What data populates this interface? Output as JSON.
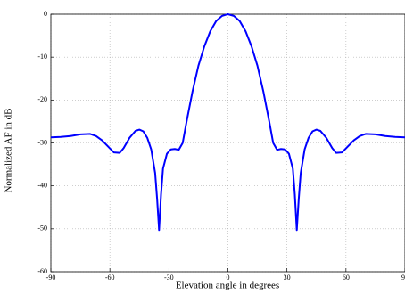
{
  "chart_data": {
    "type": "line",
    "xlabel": "Elevation angle in degrees",
    "ylabel": "Normalized AF in dB",
    "x": [
      -90,
      -85,
      -80,
      -75,
      -70,
      -67,
      -64,
      -61,
      -58,
      -55,
      -53,
      -50,
      -47,
      -45,
      -43,
      -41,
      -39,
      -37,
      -36,
      -35,
      -34,
      -33,
      -31,
      -29,
      -27,
      -25,
      -23,
      -21,
      -18,
      -15,
      -12,
      -9,
      -6,
      -3,
      0,
      3,
      6,
      9,
      12,
      15,
      18,
      21,
      23,
      25,
      27,
      29,
      31,
      33,
      34,
      35,
      36,
      37,
      39,
      41,
      43,
      45,
      47,
      50,
      53,
      55,
      58,
      61,
      64,
      67,
      70,
      75,
      80,
      85,
      90
    ],
    "series": [
      {
        "color": "#0000ff",
        "values": [
          -28.7,
          -28.6,
          -28.4,
          -28,
          -27.9,
          -28.4,
          -29.4,
          -30.8,
          -32.2,
          -32.3,
          -31.2,
          -28.8,
          -27.2,
          -26.9,
          -27.3,
          -28.8,
          -31.5,
          -37,
          -43,
          -50.3,
          -42,
          -36,
          -32.5,
          -31.5,
          -31.4,
          -31.6,
          -30,
          -25,
          -18,
          -12,
          -7.5,
          -4,
          -1.6,
          -0.4,
          0,
          -0.4,
          -1.6,
          -4,
          -7.5,
          -12,
          -18,
          -25,
          -30,
          -31.6,
          -31.4,
          -31.5,
          -32.5,
          -36,
          -42,
          -50.3,
          -43,
          -37,
          -31.5,
          -28.8,
          -27.3,
          -26.9,
          -27.2,
          -28.8,
          -31.2,
          -32.3,
          -32.2,
          -30.8,
          -29.4,
          -28.4,
          -27.9,
          -28,
          -28.4,
          -28.6,
          -28.7
        ]
      }
    ],
    "xlim": [
      -90,
      90
    ],
    "xticks": [
      -90,
      -60,
      -30,
      0,
      30,
      60,
      90
    ],
    "ylim": [
      -60,
      0
    ],
    "yticks": [
      -60,
      -50,
      -40,
      -30,
      -20,
      -10,
      0
    ],
    "grid": true
  }
}
